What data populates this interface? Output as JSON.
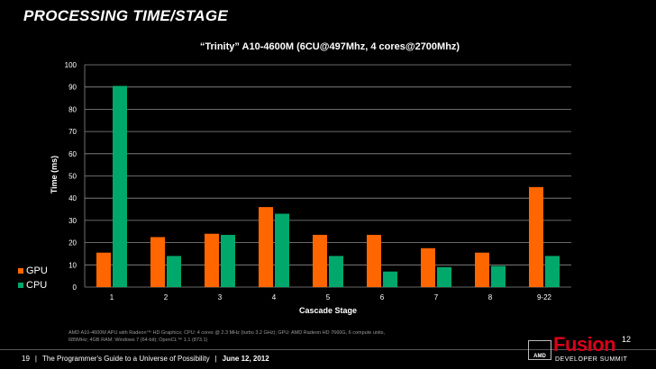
{
  "slide": {
    "title": "PROCESSING TIME/STAGE",
    "footnote": "AMD A10-4600M APU with Radeon™ HD Graphics; CPU: 4 cores @ 2.3 MHz (turbo 3.2 GHz); GPU: AMD Radeon HD 7660G, 6 compute units, 685MHz; 4GB RAM; Windows 7 (64-bit); OpenCL™ 1.1 (873.1)",
    "page_number": "19",
    "footer_text": "The Programmer's Guide to a Universe of Possibility",
    "date": "June 12, 2012"
  },
  "logo": {
    "brand": "AMD",
    "wordmark": "Fusion",
    "superscript": "12",
    "tagline": "DEVELOPER SUMMIT"
  },
  "colors": {
    "gpu": "#ff6600",
    "cpu": "#00a86b",
    "grid": "#8c8c8c",
    "background": "#000000"
  },
  "chart_data": {
    "type": "bar",
    "title": "“Trinity” A10-4600M (6CU@497Mhz, 4 cores@2700Mhz)",
    "xlabel": "Cascade Stage",
    "ylabel": "Time (ms)",
    "ylim": [
      0,
      100
    ],
    "yticks": [
      0,
      10,
      20,
      30,
      40,
      50,
      60,
      70,
      80,
      90,
      100
    ],
    "grid": true,
    "legend_position": "left",
    "categories": [
      "1",
      "2",
      "3",
      "4",
      "5",
      "6",
      "7",
      "8",
      "9-22"
    ],
    "series": [
      {
        "name": "GPU",
        "values": [
          15.5,
          22.5,
          24,
          36,
          23.5,
          23.5,
          17.5,
          15.5,
          45
        ]
      },
      {
        "name": "CPU",
        "values": [
          90.5,
          14,
          23.5,
          33,
          14,
          7,
          9,
          9.5,
          14
        ]
      }
    ]
  }
}
